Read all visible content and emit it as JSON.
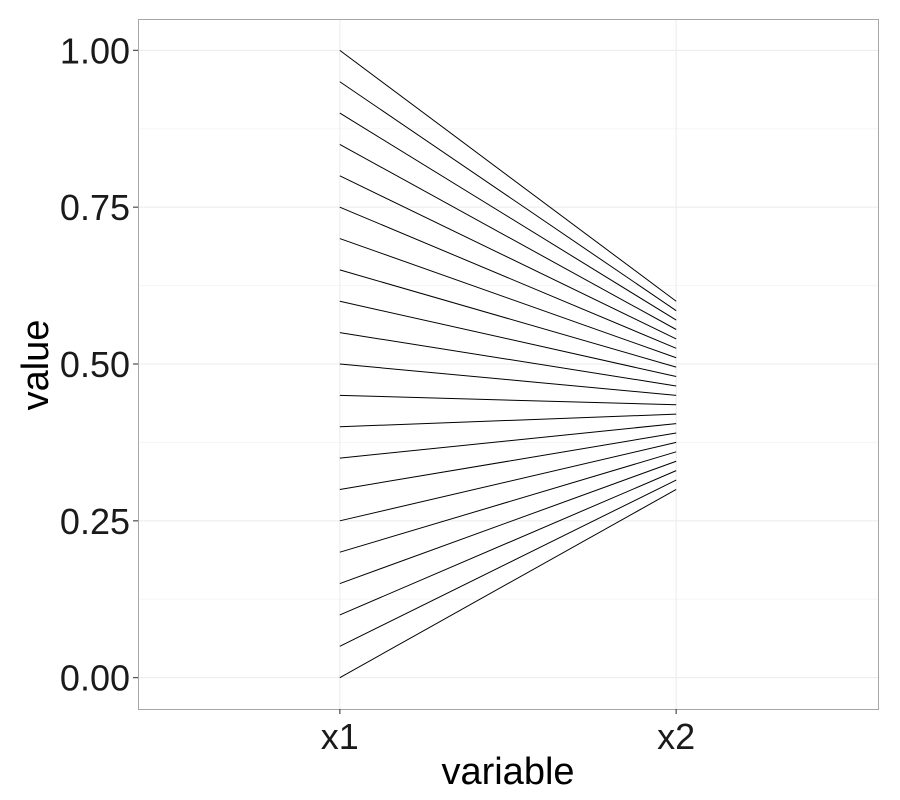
{
  "chart_data": {
    "type": "line",
    "xlabel": "variable",
    "ylabel": "value",
    "categories": [
      "x1",
      "x2"
    ],
    "ylim": [
      -0.05,
      1.05
    ],
    "y_ticks": [
      0.0,
      0.25,
      0.5,
      0.75,
      1.0
    ],
    "y_tick_labels": [
      "0.00",
      "0.25",
      "0.50",
      "0.75",
      "1.00"
    ],
    "grid": true,
    "line_color": "#000000",
    "series": [
      {
        "values": [
          0.0,
          0.3
        ]
      },
      {
        "values": [
          0.05,
          0.315
        ]
      },
      {
        "values": [
          0.1,
          0.33
        ]
      },
      {
        "values": [
          0.15,
          0.345
        ]
      },
      {
        "values": [
          0.2,
          0.36
        ]
      },
      {
        "values": [
          0.25,
          0.375
        ]
      },
      {
        "values": [
          0.3,
          0.39
        ]
      },
      {
        "values": [
          0.35,
          0.405
        ]
      },
      {
        "values": [
          0.4,
          0.42
        ]
      },
      {
        "values": [
          0.45,
          0.435
        ]
      },
      {
        "values": [
          0.5,
          0.45
        ]
      },
      {
        "values": [
          0.55,
          0.465
        ]
      },
      {
        "values": [
          0.6,
          0.48
        ]
      },
      {
        "values": [
          0.65,
          0.495
        ]
      },
      {
        "values": [
          0.7,
          0.51
        ]
      },
      {
        "values": [
          0.75,
          0.525
        ]
      },
      {
        "values": [
          0.8,
          0.54
        ]
      },
      {
        "values": [
          0.85,
          0.555
        ]
      },
      {
        "values": [
          0.9,
          0.57
        ]
      },
      {
        "values": [
          0.95,
          0.585
        ]
      },
      {
        "values": [
          1.0,
          0.6
        ]
      }
    ]
  }
}
